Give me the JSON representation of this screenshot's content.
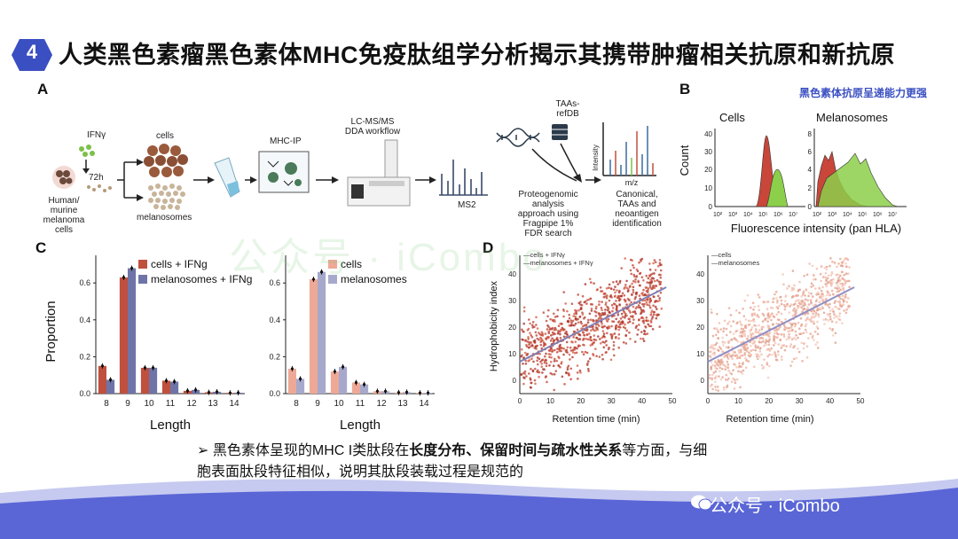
{
  "badge_number": "4",
  "title": "人类黑色素瘤黑色素体MHC免疫肽组学分析揭示其携带肿瘤相关抗原和新抗原",
  "panels": {
    "a": "A",
    "b": "B",
    "c": "C",
    "d": "D"
  },
  "workflow": {
    "ifng": "IFNγ",
    "cells": "cells",
    "time": "72h",
    "source": [
      "Human/",
      "murine",
      "melanoma",
      "cells"
    ],
    "melanosomes": "melanosomes",
    "mhc_ip": "MHC-IP",
    "lcms": [
      "LC-MS/MS",
      "DDA workflow"
    ],
    "ms2": "MS2",
    "taas_db": [
      "TAAs-",
      "refDB"
    ],
    "proteogenomic": [
      "Proteogenomic",
      "analysis",
      "approach using",
      "Fragpipe 1%",
      "FDR search"
    ],
    "spectrum_xlabel": "m/z",
    "spectrum_ylabel": "Intensity",
    "identification": [
      "Canonical,",
      "TAAs and",
      "neoantigen",
      "identification"
    ]
  },
  "panel_b": {
    "note": "黑色素体抗原呈递能力更强",
    "left_title": "Cells",
    "right_title": "Melanosomes",
    "ylabel": "Count",
    "xlabel": "Fluorescence intensity (pan HLA)",
    "left_yticks": [
      "0",
      "10",
      "20",
      "30",
      "40"
    ],
    "right_yticks": [
      "0",
      "2",
      "4",
      "6",
      "8"
    ],
    "xticks": [
      "10²",
      "10³",
      "10⁴",
      "10⁵",
      "10⁶",
      "10⁷"
    ]
  },
  "watermark": "公众号 · iCombo",
  "bullet_parts": {
    "arrow": "➢",
    "t1": "黑色素体呈现的MHC I类肽段在",
    "t2": "长度分布、保留时间与疏水性关系",
    "t3": "等方面，与细",
    "t4": "胞表面肽段特征相似，说明其肽段装载过程是规范的"
  },
  "colors": {
    "accent": "#3a4fc2",
    "red": "#c0503e",
    "blue": "#6f74a8",
    "salmon": "#eea996",
    "lavender": "#a7a9cc",
    "green": "#7fbf3f"
  },
  "chart_data": [
    {
      "type": "bar",
      "title": "",
      "categories": [
        "8",
        "9",
        "10",
        "11",
        "12",
        "13",
        "14"
      ],
      "series": [
        {
          "name": "cells + IFNg",
          "values": [
            0.15,
            0.63,
            0.14,
            0.07,
            0.015,
            0.007,
            0.004
          ]
        },
        {
          "name": "melanosomes + IFNg",
          "values": [
            0.075,
            0.68,
            0.14,
            0.065,
            0.02,
            0.01,
            0.005
          ]
        }
      ],
      "xlabel": "Length",
      "ylabel": "Proportion",
      "ylim": [
        0,
        0.75
      ],
      "yticks": [
        "0.0",
        "0.2",
        "0.4",
        "0.6"
      ]
    },
    {
      "type": "bar",
      "title": "",
      "categories": [
        "8",
        "9",
        "10",
        "11",
        "12",
        "13",
        "14"
      ],
      "series": [
        {
          "name": "cells",
          "values": [
            0.135,
            0.62,
            0.12,
            0.06,
            0.013,
            0.006,
            0.004
          ]
        },
        {
          "name": "melanosomes",
          "values": [
            0.08,
            0.66,
            0.145,
            0.05,
            0.013,
            0.008,
            0.004
          ]
        }
      ],
      "xlabel": "Length",
      "ylabel": "",
      "ylim": [
        0,
        0.75
      ],
      "yticks": [
        "0.0",
        "0.2",
        "0.4",
        "0.6"
      ]
    },
    {
      "type": "scatter",
      "legend": [
        "cells + IFNγ",
        "melanosomes + IFNγ"
      ],
      "xlabel": "Retention time (min)",
      "ylabel": "Hydrophobicity index",
      "xlim": [
        0,
        50
      ],
      "ylim": [
        -5,
        47
      ],
      "xticks": [
        "0",
        "10",
        "20",
        "30",
        "40",
        "50"
      ],
      "yticks": [
        "0",
        "10",
        "20",
        "30",
        "40"
      ],
      "trend": {
        "x": [
          0,
          48
        ],
        "y": [
          7,
          35
        ]
      }
    },
    {
      "type": "scatter",
      "legend": [
        "cells",
        "melanosomes"
      ],
      "xlabel": "Retention time (min)",
      "ylabel": "",
      "xlim": [
        0,
        50
      ],
      "ylim": [
        -5,
        47
      ],
      "xticks": [
        "0",
        "10",
        "20",
        "30",
        "40",
        "50"
      ],
      "yticks": [
        "0",
        "10",
        "20",
        "30",
        "40"
      ],
      "trend": {
        "x": [
          0,
          48
        ],
        "y": [
          7,
          35
        ]
      }
    }
  ]
}
